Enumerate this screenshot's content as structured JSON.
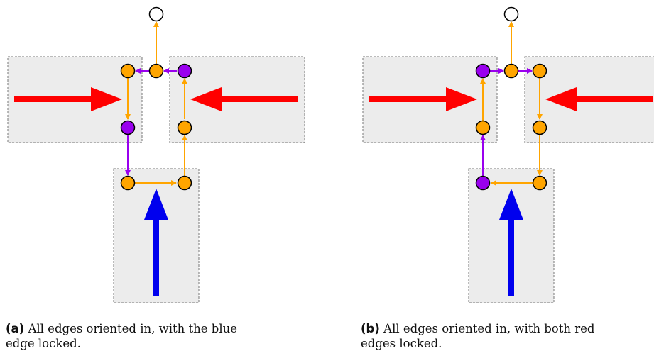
{
  "panels": [
    {
      "tag": "(a)",
      "caption_line1": "All edges oriented in, with the blue",
      "caption_line2": "edge locked."
    },
    {
      "tag": "(b)",
      "caption_line1": "All edges oriented in, with both red",
      "caption_line2": "edges locked."
    }
  ],
  "colors": {
    "red_edge": "#ff0000",
    "blue_edge": "#0000ee",
    "orange": "#ffa500",
    "purple": "#9900ee",
    "gadget_fill": "#ececec",
    "gadget_border": "#777777"
  }
}
